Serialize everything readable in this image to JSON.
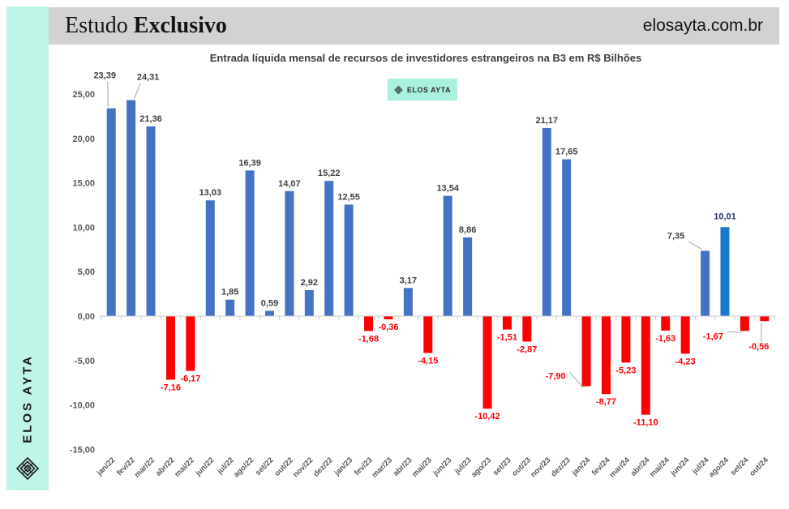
{
  "sidebar": {
    "brand": "ELOS AYTA"
  },
  "header": {
    "title_regular": "Estudo ",
    "title_bold": "Exclusivo",
    "website": "elosayta.com.br"
  },
  "badge": {
    "label": "ELOS AYTA"
  },
  "icons": {
    "logo": "elos-ayta-woven-diamond"
  },
  "chart_data": {
    "type": "bar",
    "title": "Entrada líquida mensal de recursos de investidores estrangeiros na B3 em R$ Bilhões",
    "xlabel": "",
    "ylabel": "",
    "ylim": [
      -15,
      25
    ],
    "grid": false,
    "legend_position": "none",
    "y_ticks": [
      "25,00",
      "20,00",
      "15,00",
      "10,00",
      "5,00",
      "0,00",
      "-5,00",
      "-10,00",
      "-15,00"
    ],
    "y_tick_values": [
      25,
      20,
      15,
      10,
      5,
      0,
      -5,
      -10,
      -15
    ],
    "categories": [
      "jan/22",
      "fev/22",
      "mar/22",
      "abr/22",
      "mai/22",
      "jun/22",
      "jul/22",
      "ago/22",
      "set/22",
      "out/22",
      "nov/22",
      "dez/22",
      "jan/23",
      "fev/23",
      "mar/23",
      "abr/23",
      "mai/23",
      "jun/23",
      "jul/23",
      "ago/23",
      "set/23",
      "out/23",
      "nov/23",
      "dez/23",
      "jan/24",
      "fev/24",
      "mar/24",
      "abr/24",
      "mai/24",
      "jun/24",
      "jul/24",
      "ago/24",
      "set/24",
      "out/24"
    ],
    "values": [
      23.39,
      24.31,
      21.36,
      -7.16,
      -6.17,
      13.03,
      1.85,
      16.39,
      0.59,
      14.07,
      2.92,
      15.22,
      12.55,
      -1.68,
      -0.36,
      3.17,
      -4.15,
      13.54,
      8.86,
      -10.42,
      -1.51,
      -2.87,
      21.17,
      17.65,
      -7.9,
      -8.77,
      -5.23,
      -11.1,
      -1.63,
      -4.23,
      7.35,
      10.01,
      -1.67,
      -0.56
    ],
    "labels": [
      "23,39",
      "24,31",
      "21,36",
      "-7,16",
      "-6,17",
      "13,03",
      "1,85",
      "16,39",
      "0,59",
      "14,07",
      "2,92",
      "15,22",
      "12,55",
      "-1,68",
      "-0,36",
      "3,17",
      "-4,15",
      "13,54",
      "8,86",
      "-10,42",
      "-1,51",
      "-2,87",
      "21,17",
      "17,65",
      "-7,90",
      "-8,77",
      "-5,23",
      "-11,10",
      "-1,63",
      "-4,23",
      "7,35",
      "10,01",
      "-1,67",
      "-0,56"
    ],
    "highlight_index": 31,
    "colors": {
      "positive": "#4472C4",
      "negative": "#FE0000",
      "highlight": "#1878CE",
      "positive_label": "#3F3F3F",
      "negative_label": "#FE0000",
      "highlight_label": "#1F3864",
      "axis": "#C9C9C9",
      "leader": "#A6A6A6"
    },
    "label_layout": {
      "0": {
        "dx": -8,
        "dy": -31,
        "leader": true
      },
      "1": {
        "dx": 21,
        "dy": -19,
        "leader": true
      },
      "24": {
        "dx": -38,
        "dy": -22,
        "leader": true
      },
      "30": {
        "dx": -36,
        "dy": -9,
        "leader": true
      },
      "31": {
        "dx": 0,
        "dy": -4,
        "leader": false
      },
      "32": {
        "dx": -39,
        "dy": -3,
        "leader": true
      },
      "33": {
        "dx": -7,
        "dy": 22,
        "leader": true
      }
    }
  }
}
